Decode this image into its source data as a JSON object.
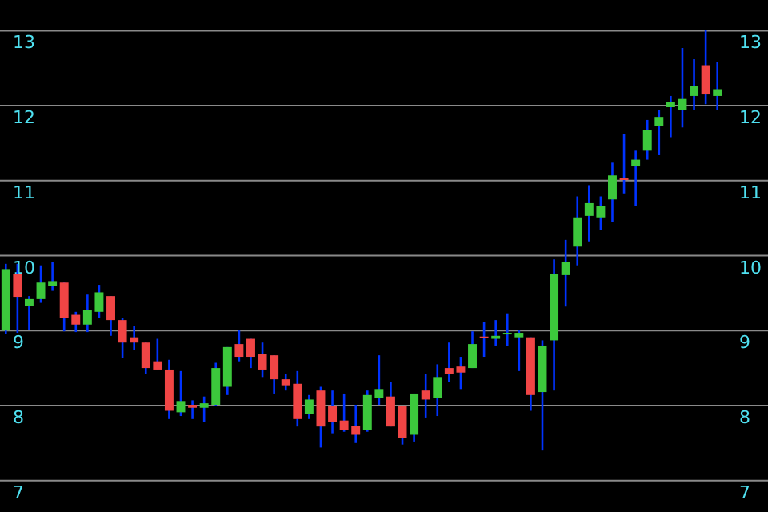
{
  "chart_data": {
    "type": "candlestick",
    "categories": [
      null,
      null,
      null,
      null,
      null,
      null,
      null,
      null,
      null,
      null,
      null,
      null,
      null,
      null,
      null,
      null,
      null,
      null,
      null,
      null,
      null,
      null,
      null,
      null,
      null,
      null,
      null,
      null,
      null,
      null,
      null,
      null,
      null,
      null,
      null,
      null,
      null,
      null,
      null,
      null,
      null,
      null,
      null,
      null,
      null,
      null,
      null,
      null,
      null,
      null,
      null,
      null,
      null,
      null,
      null,
      null,
      null,
      null,
      null,
      null,
      null,
      null
    ],
    "ohlc": [
      [
        9.0,
        9.89,
        8.95,
        9.82
      ],
      [
        9.76,
        9.89,
        8.97,
        9.45
      ],
      [
        9.33,
        9.46,
        9.01,
        9.42
      ],
      [
        9.42,
        9.87,
        9.37,
        9.64
      ],
      [
        9.59,
        9.91,
        9.53,
        9.66
      ],
      [
        9.64,
        9.64,
        8.99,
        9.17
      ],
      [
        9.21,
        9.25,
        8.98,
        9.08
      ],
      [
        9.08,
        9.48,
        8.98,
        9.27
      ],
      [
        9.25,
        9.61,
        9.17,
        9.51
      ],
      [
        9.46,
        9.46,
        8.93,
        9.14
      ],
      [
        9.14,
        9.17,
        8.63,
        8.84
      ],
      [
        8.91,
        9.06,
        8.74,
        8.84
      ],
      [
        8.84,
        8.84,
        8.42,
        8.5
      ],
      [
        8.59,
        8.89,
        8.48,
        8.48
      ],
      [
        8.48,
        8.61,
        7.82,
        7.93
      ],
      [
        7.91,
        8.46,
        7.86,
        8.06
      ],
      [
        8.01,
        8.07,
        7.82,
        7.97
      ],
      [
        7.97,
        8.12,
        7.78,
        8.03
      ],
      [
        8.01,
        8.57,
        7.99,
        8.5
      ],
      [
        8.25,
        8.78,
        8.14,
        8.78
      ],
      [
        8.82,
        9.01,
        8.59,
        8.65
      ],
      [
        8.89,
        8.89,
        8.5,
        8.65
      ],
      [
        8.69,
        8.84,
        8.38,
        8.48
      ],
      [
        8.67,
        8.67,
        8.16,
        8.35
      ],
      [
        8.35,
        8.42,
        8.2,
        8.27
      ],
      [
        8.29,
        8.46,
        7.72,
        7.82
      ],
      [
        7.89,
        8.14,
        7.82,
        8.08
      ],
      [
        8.2,
        8.25,
        7.44,
        7.72
      ],
      [
        7.99,
        8.2,
        7.63,
        7.78
      ],
      [
        7.8,
        8.16,
        7.65,
        7.67
      ],
      [
        7.73,
        8.01,
        7.5,
        7.61
      ],
      [
        7.67,
        8.2,
        7.65,
        8.14
      ],
      [
        8.1,
        8.67,
        8.01,
        8.22
      ],
      [
        8.12,
        8.31,
        7.72,
        7.72
      ],
      [
        7.99,
        7.99,
        7.48,
        7.57
      ],
      [
        7.61,
        8.16,
        7.52,
        8.16
      ],
      [
        8.2,
        8.42,
        7.84,
        8.08
      ],
      [
        8.1,
        8.55,
        7.86,
        8.38
      ],
      [
        8.5,
        8.84,
        8.31,
        8.42
      ],
      [
        8.52,
        8.65,
        8.22,
        8.44
      ],
      [
        8.5,
        8.99,
        8.5,
        8.82
      ],
      [
        8.92,
        9.12,
        8.65,
        8.9
      ],
      [
        8.89,
        9.14,
        8.8,
        8.93
      ],
      [
        8.95,
        9.23,
        8.8,
        8.97
      ],
      [
        8.91,
        9.01,
        8.46,
        8.97
      ],
      [
        8.91,
        8.91,
        7.93,
        8.14
      ],
      [
        8.18,
        8.87,
        7.4,
        8.8
      ],
      [
        8.87,
        9.95,
        8.2,
        9.76
      ],
      [
        9.74,
        10.21,
        9.32,
        9.91
      ],
      [
        10.12,
        10.79,
        9.87,
        10.51
      ],
      [
        10.53,
        10.94,
        10.19,
        10.7
      ],
      [
        10.51,
        10.79,
        10.34,
        10.66
      ],
      [
        10.75,
        11.24,
        10.45,
        11.07
      ],
      [
        11.03,
        11.62,
        10.83,
        11.01
      ],
      [
        11.19,
        11.4,
        10.66,
        11.28
      ],
      [
        11.4,
        11.81,
        11.28,
        11.68
      ],
      [
        11.73,
        11.94,
        11.34,
        11.85
      ],
      [
        11.98,
        12.13,
        11.58,
        12.05
      ],
      [
        11.94,
        12.77,
        11.71,
        12.09
      ],
      [
        12.13,
        12.62,
        11.94,
        12.26
      ],
      [
        12.54,
        13.01,
        12.02,
        12.15
      ],
      [
        12.13,
        12.58,
        11.94,
        12.22
      ]
    ],
    "colors": [
      "#3cc83c",
      "#f04545",
      "#3cc83c",
      "#3cc83c",
      "#3cc83c",
      "#f04545",
      "#f04545",
      "#3cc83c",
      "#3cc83c",
      "#f04545",
      "#f04545",
      "#f04545",
      "#f04545",
      "#f04545",
      "#f04545",
      "#3cc83c",
      "#f04545",
      "#3cc83c",
      "#3cc83c",
      "#3cc83c",
      "#f04545",
      "#f04545",
      "#f04545",
      "#f04545",
      "#f04545",
      "#f04545",
      "#3cc83c",
      "#f04545",
      "#f04545",
      "#f04545",
      "#f04545",
      "#3cc83c",
      "#3cc83c",
      "#f04545",
      "#f04545",
      "#3cc83c",
      "#f04545",
      "#3cc83c",
      "#f04545",
      "#f04545",
      "#3cc83c",
      "#f04545",
      "#3cc83c",
      "#3cc83c",
      "#3cc83c",
      "#f04545",
      "#3cc83c",
      "#3cc83c",
      "#3cc83c",
      "#3cc83c",
      "#3cc83c",
      "#3cc83c",
      "#3cc83c",
      "#f04545",
      "#3cc83c",
      "#3cc83c",
      "#3cc83c",
      "#3cc83c",
      "#3cc83c",
      "#3cc83c",
      "#f04545",
      "#3cc83c"
    ],
    "ylim": [
      6.58,
      13.41
    ],
    "yticks": [
      7,
      8,
      9,
      10,
      11,
      12,
      13
    ],
    "y2lim": [
      6.58,
      13.41
    ],
    "y2ticks": [
      7,
      8,
      9,
      10,
      11,
      12,
      13
    ],
    "grid": "y"
  }
}
